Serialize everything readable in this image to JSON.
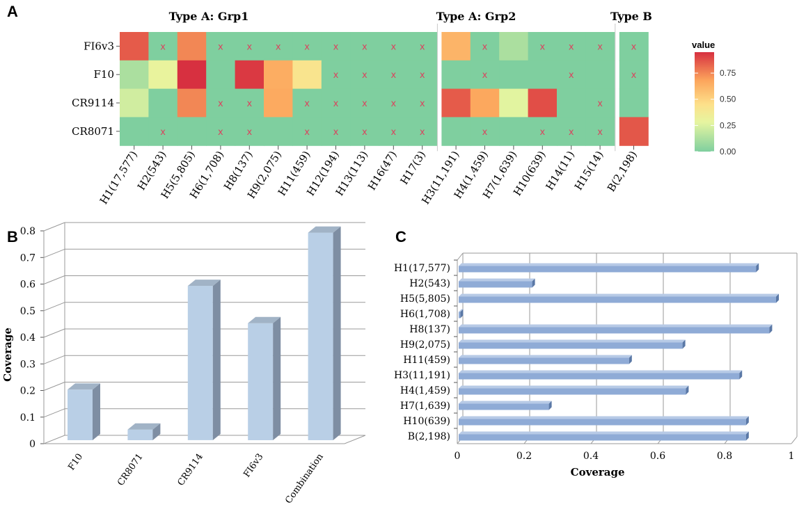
{
  "panels": {
    "a": "A",
    "b": "B",
    "c": "C"
  },
  "chart_data": [
    {
      "type": "heatmap",
      "title": "",
      "groups": [
        {
          "title": "Type A: Grp1",
          "columns": 11
        },
        {
          "title": "Type A: Grp2",
          "columns": 6
        },
        {
          "title": "Type B",
          "columns": 1
        }
      ],
      "columns": [
        "H1(17,577)",
        "H2(543)",
        "H5(5,805)",
        "H6(1,708)",
        "H8(137)",
        "H9(2,075)",
        "H11(459)",
        "H12(194)",
        "H13(113)",
        "H16(47)",
        "H17(3)",
        "H3(11,191)",
        "H4(1,459)",
        "H7(1,639)",
        "H10(639)",
        "H14(11)",
        "H15(14)",
        "B(2,198)"
      ],
      "rows": [
        "FI6v3",
        "F10",
        "CR9114",
        "CR8071"
      ],
      "values": [
        [
          0.85,
          0.0,
          0.75,
          0.0,
          0.0,
          0.0,
          0.0,
          0.0,
          0.0,
          0.0,
          0.0,
          0.62,
          0.0,
          0.12,
          0.0,
          0.0,
          0.0,
          0.0
        ],
        [
          0.12,
          0.3,
          0.95,
          0.0,
          0.93,
          0.65,
          0.42,
          0.0,
          0.0,
          0.0,
          0.0,
          0.0,
          0.0,
          0.0,
          0.0,
          0.0,
          0.0,
          0.0
        ],
        [
          0.22,
          0.0,
          0.75,
          0.0,
          0.0,
          0.66,
          0.0,
          0.0,
          0.0,
          0.0,
          0.0,
          0.85,
          0.67,
          0.27,
          0.88,
          0.0,
          0.0,
          0.0
        ],
        [
          0.0,
          0.0,
          0.0,
          0.0,
          0.0,
          0.0,
          0.0,
          0.0,
          0.0,
          0.0,
          0.0,
          0.0,
          0.0,
          0.0,
          0.0,
          0.0,
          0.0,
          0.86
        ]
      ],
      "x_marks": [
        [
          1,
          3,
          4,
          5,
          6,
          7,
          8,
          9,
          10,
          12,
          14,
          15,
          16,
          17
        ],
        [
          7,
          8,
          9,
          10,
          12,
          15,
          17
        ],
        [
          3,
          4,
          6,
          7,
          8,
          9,
          10,
          16
        ],
        [
          1,
          3,
          4,
          6,
          7,
          8,
          9,
          10,
          12,
          14,
          15,
          16
        ]
      ],
      "x_symbol": "x",
      "legend": {
        "title": "value",
        "ticks": [
          "0.75",
          "0.50",
          "0.25",
          "0.00"
        ],
        "tick_values": [
          0.75,
          0.5,
          0.25,
          0.0
        ],
        "range": [
          0,
          0.95
        ]
      },
      "colors": {
        "low": "#7fcf9f",
        "mid_low": "#e6f5a0",
        "mid": "#fde08a",
        "mid_high": "#fca55c",
        "high": "#d73040",
        "mark": "#d9455f"
      }
    },
    {
      "type": "bar",
      "style": "3d",
      "categories": [
        "F10",
        "CR8071",
        "CR9114",
        "FI6v3",
        "Combination"
      ],
      "values": [
        0.19,
        0.04,
        0.58,
        0.44,
        0.78
      ],
      "ylabel": "Coverage",
      "xlabel": "",
      "ylim": [
        0,
        0.8
      ],
      "yticks": [
        "0",
        "0.1",
        "0.2",
        "0.3",
        "0.4",
        "0.5",
        "0.6",
        "0.7",
        "0.8"
      ],
      "colors": {
        "bar_front": "#b9cfe6",
        "bar_side": "#7e8ea3",
        "bar_top": "#a1b3c6",
        "grid": "#999999"
      }
    },
    {
      "type": "bar",
      "orientation": "horizontal",
      "style": "3d",
      "categories": [
        "H1(17,577)",
        "H2(543)",
        "H5(5,805)",
        "H6(1,708)",
        "H8(137)",
        "H9(2,075)",
        "H11(459)",
        "H3(11,191)",
        "H4(1,459)",
        "H7(1,639)",
        "H10(639)",
        "B(2,198)"
      ],
      "values": [
        0.89,
        0.22,
        0.95,
        0.005,
        0.93,
        0.67,
        0.51,
        0.84,
        0.68,
        0.27,
        0.86,
        0.86
      ],
      "xlabel": "Coverage",
      "ylabel": "",
      "xlim": [
        0,
        1
      ],
      "xticks": [
        "0",
        "0.2",
        "0.4",
        "0.6",
        "0.8",
        "1"
      ],
      "colors": {
        "bar_front": "#8fabd6",
        "bar_top": "#b7cae6",
        "bar_end": "#5a78a6",
        "grid": "#999999"
      }
    }
  ]
}
